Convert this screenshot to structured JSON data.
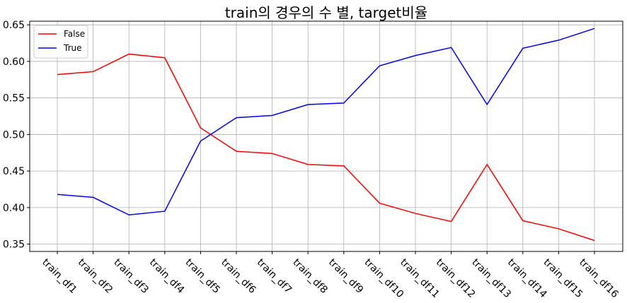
{
  "chart_data": {
    "type": "line",
    "title": "train의 경우의 수 별, target비율",
    "xlabel": "",
    "ylabel": "",
    "categories": [
      "train_df1",
      "train_df2",
      "train_df3",
      "train_df4",
      "train_df5",
      "train_df6",
      "train_df7",
      "train_df8",
      "train_df9",
      "train_df10",
      "train_df11",
      "train_df12",
      "train_df13",
      "train_df14",
      "train_df15",
      "train_df16"
    ],
    "series": [
      {
        "name": "False",
        "color": "#ff0000",
        "values": [
          0.582,
          0.586,
          0.61,
          0.605,
          0.509,
          0.477,
          0.474,
          0.459,
          0.457,
          0.406,
          0.392,
          0.381,
          0.459,
          0.382,
          0.371,
          0.355
        ]
      },
      {
        "name": "True",
        "color": "#0000ff",
        "values": [
          0.418,
          0.414,
          0.39,
          0.395,
          0.491,
          0.523,
          0.526,
          0.541,
          0.543,
          0.594,
          0.608,
          0.619,
          0.541,
          0.618,
          0.629,
          0.645
        ]
      }
    ],
    "yticks": [
      0.35,
      0.4,
      0.45,
      0.5,
      0.55,
      0.6,
      0.65
    ],
    "ylim": [
      0.34,
      0.655
    ],
    "grid": true,
    "legend": "top-left"
  }
}
